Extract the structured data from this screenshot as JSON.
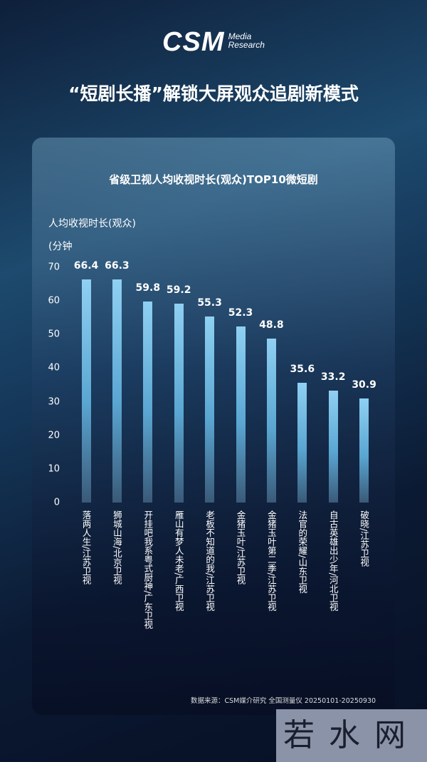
{
  "logo": {
    "brand": "CSM",
    "line1": "Media",
    "line2": "Research"
  },
  "headline": "“短剧长播”解锁大屏观众追剧新模式",
  "chart_data": {
    "type": "bar",
    "title": "省级卫视人均收视时长(观众)TOP10微短剧",
    "ylabel": "人均收视时长(观众)",
    "yunit": "(分钟",
    "ylim": [
      0,
      70
    ],
    "yticks": [
      0,
      10,
      20,
      30,
      40,
      50,
      60,
      70
    ],
    "grid": false,
    "categories": [
      "落两人生/江苏卫视",
      "狮城山海/北京卫视",
      "开挂吧我系粤式厨神/广东卫视",
      "雁山有梦人未老/广西卫视",
      "老板不知道的我/江苏卫视",
      "金猪玉叶/江苏卫视",
      "金猪玉叶第二季/江苏卫视",
      "法官的荣耀/山东卫视",
      "自古英雄出少年/河北卫视",
      "破晓/江苏卫视"
    ],
    "values": [
      66.4,
      66.3,
      59.8,
      59.2,
      55.3,
      52.3,
      48.8,
      35.6,
      33.2,
      30.9
    ],
    "bar_color": "#7cc4ea"
  },
  "source": "数据来源：CSM媒介研究 全国测量仪 20250101-20250930",
  "watermark": "若水网"
}
